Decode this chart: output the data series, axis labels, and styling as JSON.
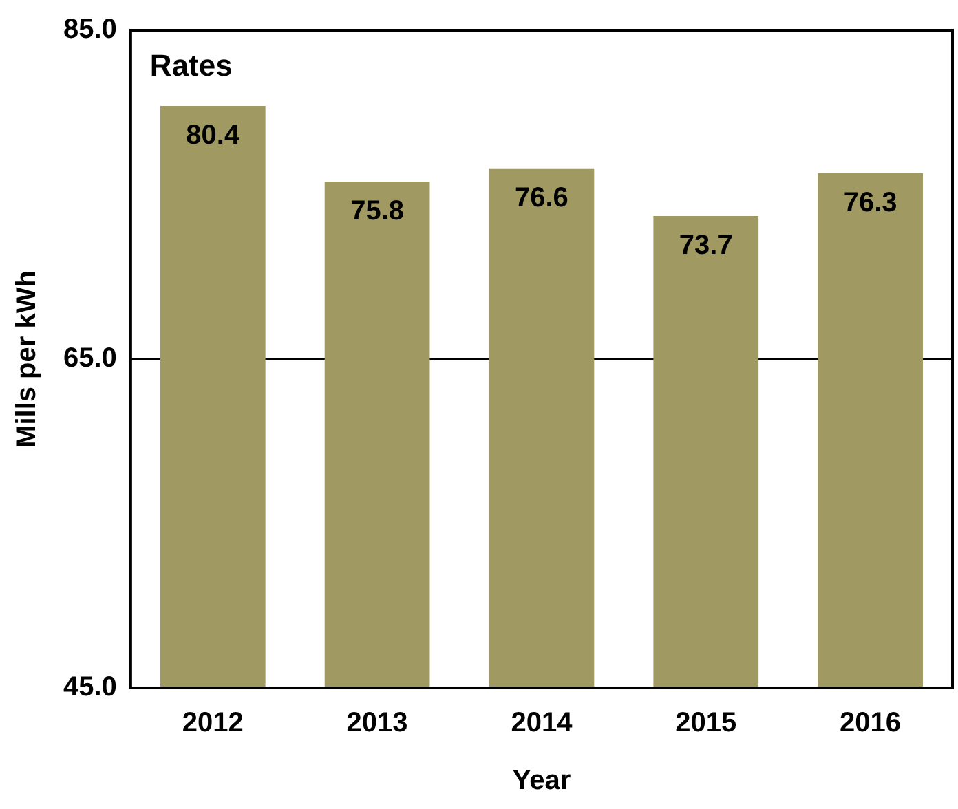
{
  "chart_data": {
    "type": "bar",
    "title": "Rates",
    "xlabel": "Year",
    "ylabel": "Mills per kWh",
    "categories": [
      "2012",
      "2013",
      "2014",
      "2015",
      "2016"
    ],
    "values": [
      80.4,
      75.8,
      76.6,
      73.7,
      76.3
    ],
    "color": "#a09a62",
    "ylim": [
      45,
      85
    ],
    "yticks": [
      {
        "value": 45,
        "label": "45.0"
      },
      {
        "value": 65,
        "label": "65.0"
      },
      {
        "value": 85,
        "label": "85.0"
      }
    ],
    "grid": "y",
    "data_labels": true
  }
}
